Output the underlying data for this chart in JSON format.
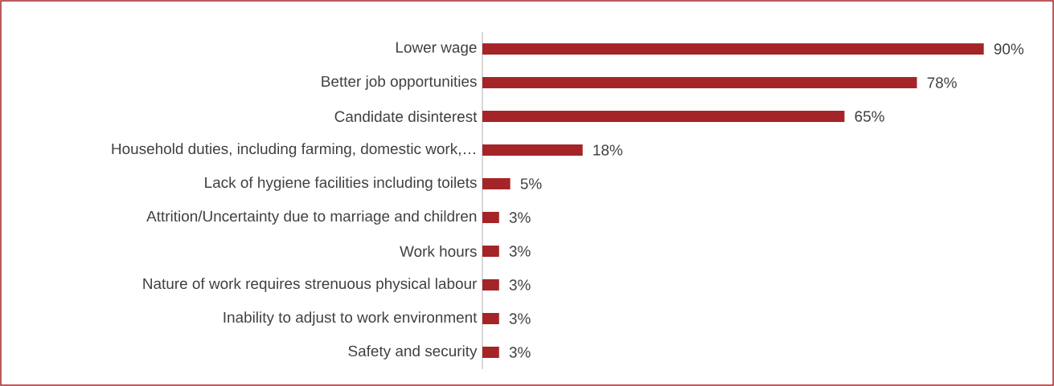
{
  "chart_data": {
    "type": "bar",
    "orientation": "horizontal",
    "color": "#a52428",
    "categories": [
      "Lower wage",
      "Better job opportunities",
      "Candidate disinterest",
      "Household duties, including farming, domestic work,…",
      "Lack of hygiene facilities including toilets",
      "Attrition/Uncertainty due to marriage and children",
      "Work hours",
      "Nature of work requires strenuous physical labour",
      "Inability to adjust to work environment",
      "Safety and security"
    ],
    "values": [
      90,
      78,
      65,
      18,
      5,
      3,
      3,
      3,
      3,
      3
    ],
    "value_labels": [
      "90%",
      "78%",
      "65%",
      "18%",
      "5%",
      "3%",
      "3%",
      "3%",
      "3%",
      "3%"
    ]
  }
}
